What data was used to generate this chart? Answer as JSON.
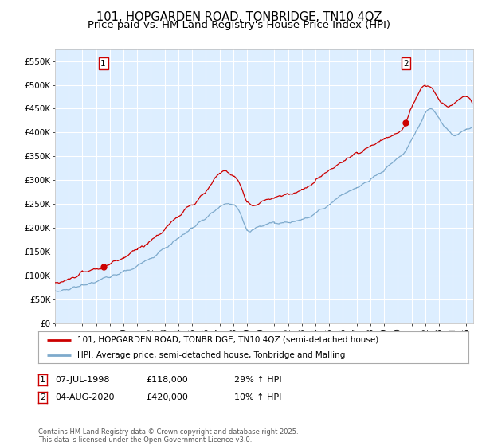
{
  "title": "101, HOPGARDEN ROAD, TONBRIDGE, TN10 4QZ",
  "subtitle": "Price paid vs. HM Land Registry's House Price Index (HPI)",
  "ylabel_ticks": [
    "£0",
    "£50K",
    "£100K",
    "£150K",
    "£200K",
    "£250K",
    "£300K",
    "£350K",
    "£400K",
    "£450K",
    "£500K",
    "£550K"
  ],
  "ytick_values": [
    0,
    50000,
    100000,
    150000,
    200000,
    250000,
    300000,
    350000,
    400000,
    450000,
    500000,
    550000
  ],
  "ylim": [
    0,
    575000
  ],
  "xlim_start": 1995.0,
  "xlim_end": 2025.5,
  "xticks": [
    1995,
    1996,
    1997,
    1998,
    1999,
    2000,
    2001,
    2002,
    2003,
    2004,
    2005,
    2006,
    2007,
    2008,
    2009,
    2010,
    2011,
    2012,
    2013,
    2014,
    2015,
    2016,
    2017,
    2018,
    2019,
    2020,
    2021,
    2022,
    2023,
    2024,
    2025
  ],
  "red_line_color": "#cc0000",
  "blue_line_color": "#7eaacc",
  "background_color": "#ddeeff",
  "plot_bg_color": "#ddeeff",
  "grid_color": "#ffffff",
  "sale1_x": 1998.52,
  "sale1_y": 118000,
  "sale2_x": 2020.59,
  "sale2_y": 420000,
  "legend_red": "101, HOPGARDEN ROAD, TONBRIDGE, TN10 4QZ (semi-detached house)",
  "legend_blue": "HPI: Average price, semi-detached house, Tonbridge and Malling",
  "footer": "Contains HM Land Registry data © Crown copyright and database right 2025.\nThis data is licensed under the Open Government Licence v3.0.",
  "title_fontsize": 10.5,
  "subtitle_fontsize": 9.5
}
